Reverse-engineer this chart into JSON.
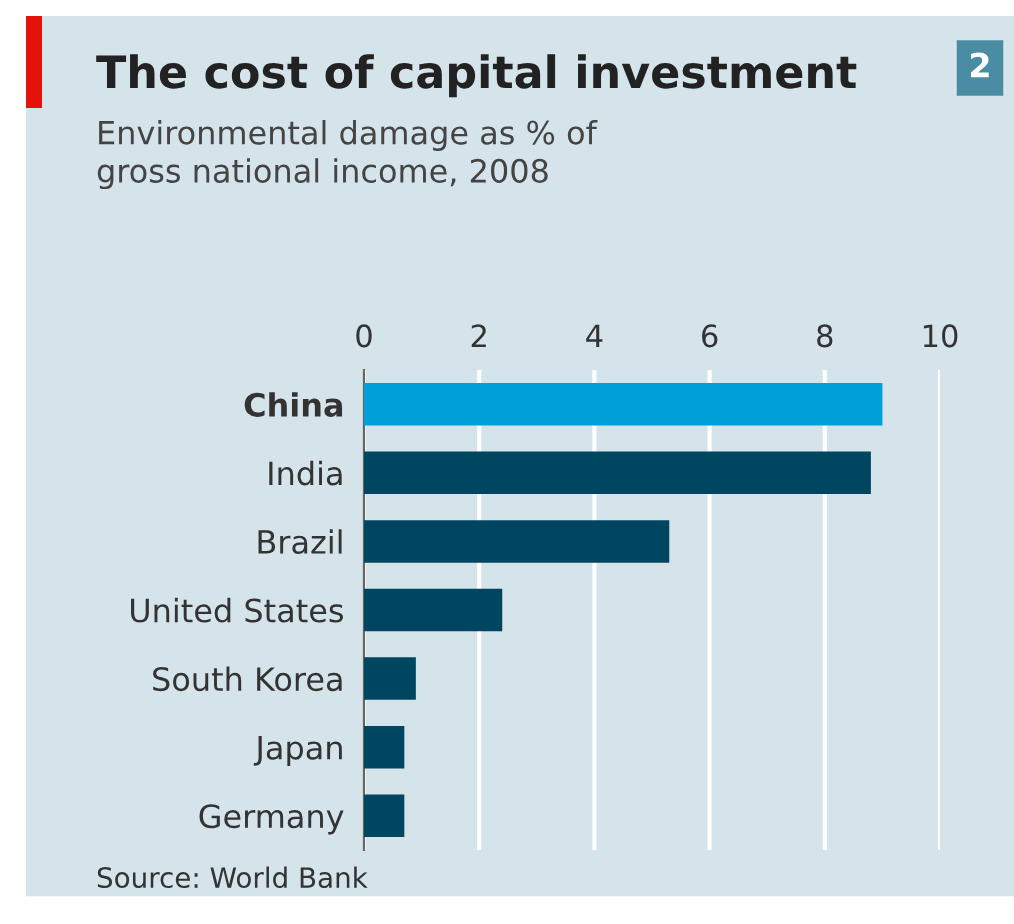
{
  "chart_data": {
    "type": "bar",
    "orientation": "horizontal",
    "title": "The cost of capital investment",
    "subtitle": "Environmental damage as % of\ngross national income, 2008",
    "categories": [
      "China",
      "India",
      "Brazil",
      "United States",
      "South Korea",
      "Japan",
      "Germany"
    ],
    "values": [
      9.0,
      8.8,
      5.3,
      2.4,
      0.9,
      0.7,
      0.7
    ],
    "colors": [
      "#00a0d8",
      "#004660",
      "#004660",
      "#004660",
      "#004660",
      "#004660",
      "#004660"
    ],
    "xlim": [
      0,
      10
    ],
    "xticks": [
      0,
      2,
      4,
      6,
      8,
      10
    ],
    "grid": "x",
    "annotations": [
      "2",
      "Source: World Bank"
    ]
  }
}
